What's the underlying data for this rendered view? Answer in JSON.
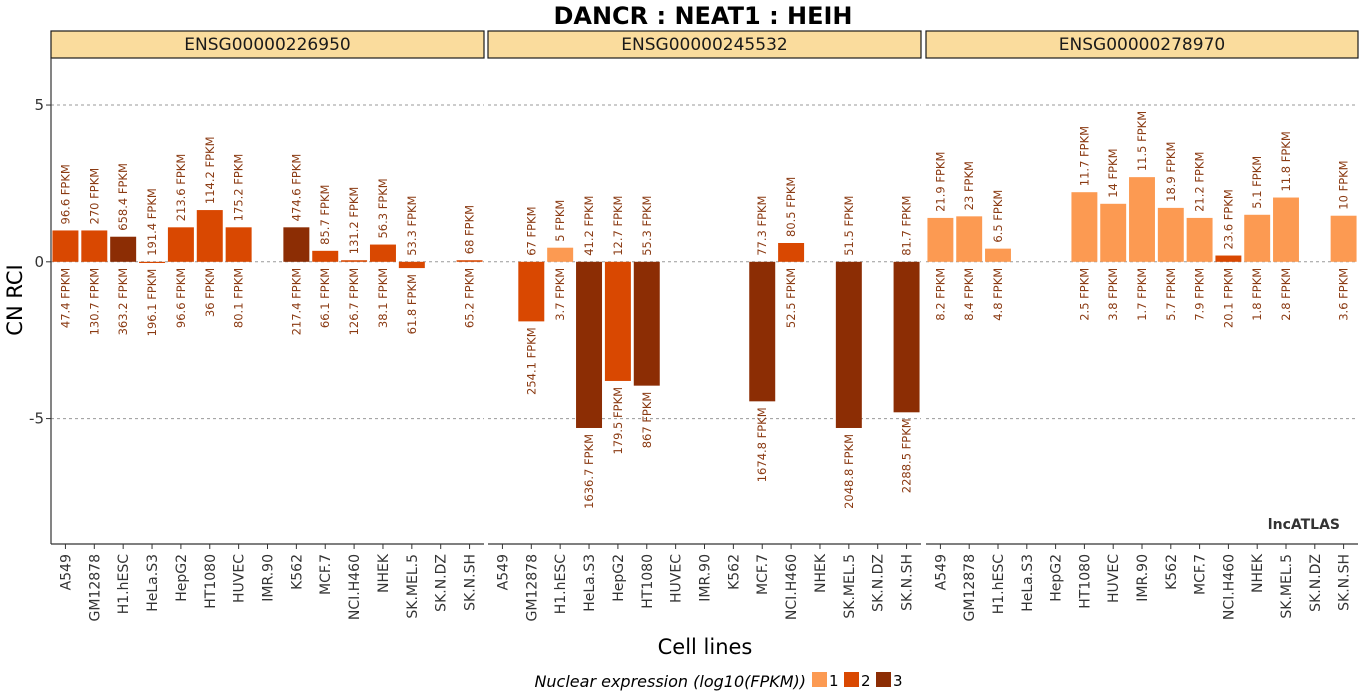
{
  "chart_data": {
    "type": "bar",
    "title": "DANCR : NEAT1 : HEIH",
    "xlabel": "Cell lines",
    "ylabel": "CN RCI",
    "ylim": [
      -9,
      6.5
    ],
    "yticks": [
      -5,
      0,
      5
    ],
    "grid": true,
    "watermark": "lncATLAS",
    "categories": [
      "A549",
      "GM12878",
      "H1.hESC",
      "HeLa.S3",
      "HepG2",
      "HT1080",
      "HUVEC",
      "IMR.90",
      "K562",
      "MCF.7",
      "NCI.H460",
      "NHEK",
      "SK.MEL.5",
      "SK.N.DZ",
      "SK.N.SH"
    ],
    "legend": {
      "title": "Nuclear expression (log10(FPKM))",
      "position": "bottom",
      "levels": [
        {
          "label": "1",
          "color": "#fc9a52"
        },
        {
          "label": "2",
          "color": "#d94801"
        },
        {
          "label": "3",
          "color": "#8c2d04"
        }
      ]
    },
    "panels": [
      {
        "name": "ENSG00000226950",
        "bars": [
          {
            "cell": "A549",
            "value": 1.0,
            "level": 2,
            "cyto_label": "96.6 FPKM",
            "nuc_label": "47.4 FPKM"
          },
          {
            "cell": "GM12878",
            "value": 1.0,
            "level": 2,
            "cyto_label": "270 FPKM",
            "nuc_label": "130.7 FPKM"
          },
          {
            "cell": "H1.hESC",
            "value": 0.8,
            "level": 3,
            "cyto_label": "658.4 FPKM",
            "nuc_label": "363.2 FPKM"
          },
          {
            "cell": "HeLa.S3",
            "value": -0.03,
            "level": 2,
            "cyto_label": "191.4 FPKM",
            "nuc_label": "196.1 FPKM"
          },
          {
            "cell": "HepG2",
            "value": 1.1,
            "level": 2,
            "cyto_label": "213.6 FPKM",
            "nuc_label": "96.6 FPKM"
          },
          {
            "cell": "HT1080",
            "value": 1.65,
            "level": 2,
            "cyto_label": "114.2 FPKM",
            "nuc_label": "36 FPKM"
          },
          {
            "cell": "HUVEC",
            "value": 1.1,
            "level": 2,
            "cyto_label": "175.2 FPKM",
            "nuc_label": "80.1 FPKM"
          },
          {
            "cell": "K562",
            "value": 1.1,
            "level": 3,
            "cyto_label": "474.6 FPKM",
            "nuc_label": "217.4 FPKM"
          },
          {
            "cell": "MCF.7",
            "value": 0.35,
            "level": 2,
            "cyto_label": "85.7 FPKM",
            "nuc_label": "66.1 FPKM"
          },
          {
            "cell": "NCI.H460",
            "value": 0.05,
            "level": 2,
            "cyto_label": "131.2 FPKM",
            "nuc_label": "126.7 FPKM"
          },
          {
            "cell": "NHEK",
            "value": 0.55,
            "level": 2,
            "cyto_label": "56.3 FPKM",
            "nuc_label": "38.1 FPKM"
          },
          {
            "cell": "SK.MEL.5",
            "value": -0.2,
            "level": 2,
            "cyto_label": "53.3 FPKM",
            "nuc_label": "61.8 FPKM"
          },
          {
            "cell": "SK.N.SH",
            "value": 0.05,
            "level": 2,
            "cyto_label": "68 FPKM",
            "nuc_label": "65.2 FPKM"
          }
        ]
      },
      {
        "name": "ENSG00000245532",
        "bars": [
          {
            "cell": "GM12878",
            "value": -1.9,
            "level": 2,
            "cyto_label": "67 FPKM",
            "nuc_label": "254.1 FPKM"
          },
          {
            "cell": "H1.hESC",
            "value": 0.45,
            "level": 1,
            "cyto_label": "5 FPKM",
            "nuc_label": "3.7 FPKM"
          },
          {
            "cell": "HeLa.S3",
            "value": -5.3,
            "level": 3,
            "cyto_label": "41.2 FPKM",
            "nuc_label": "1636.7 FPKM"
          },
          {
            "cell": "HepG2",
            "value": -3.8,
            "level": 2,
            "cyto_label": "12.7 FPKM",
            "nuc_label": "179.5 FPKM"
          },
          {
            "cell": "HT1080",
            "value": -3.95,
            "level": 3,
            "cyto_label": "55.3 FPKM",
            "nuc_label": "867 FPKM"
          },
          {
            "cell": "MCF.7",
            "value": -4.45,
            "level": 3,
            "cyto_label": "77.3 FPKM",
            "nuc_label": "1674.8 FPKM"
          },
          {
            "cell": "NCI.H460",
            "value": 0.6,
            "level": 2,
            "cyto_label": "80.5 FPKM",
            "nuc_label": "52.5 FPKM"
          },
          {
            "cell": "SK.MEL.5",
            "value": -5.3,
            "level": 3,
            "cyto_label": "51.5 FPKM",
            "nuc_label": "2048.8 FPKM"
          },
          {
            "cell": "SK.N.SH",
            "value": -4.8,
            "level": 3,
            "cyto_label": "81.7 FPKM",
            "nuc_label": "2288.5 FPKM"
          }
        ]
      },
      {
        "name": "ENSG00000278970",
        "bars": [
          {
            "cell": "A549",
            "value": 1.4,
            "level": 1,
            "cyto_label": "21.9 FPKM",
            "nuc_label": "8.2 FPKM"
          },
          {
            "cell": "GM12878",
            "value": 1.45,
            "level": 1,
            "cyto_label": "23 FPKM",
            "nuc_label": "8.4 FPKM"
          },
          {
            "cell": "H1.hESC",
            "value": 0.42,
            "level": 1,
            "cyto_label": "6.5 FPKM",
            "nuc_label": "4.8 FPKM"
          },
          {
            "cell": "HT1080",
            "value": 2.22,
            "level": 1,
            "cyto_label": "11.7 FPKM",
            "nuc_label": "2.5 FPKM"
          },
          {
            "cell": "HUVEC",
            "value": 1.85,
            "level": 1,
            "cyto_label": "14 FPKM",
            "nuc_label": "3.8 FPKM"
          },
          {
            "cell": "IMR.90",
            "value": 2.7,
            "level": 1,
            "cyto_label": "11.5 FPKM",
            "nuc_label": "1.7 FPKM"
          },
          {
            "cell": "K562",
            "value": 1.72,
            "level": 1,
            "cyto_label": "18.9 FPKM",
            "nuc_label": "5.7 FPKM"
          },
          {
            "cell": "MCF.7",
            "value": 1.4,
            "level": 1,
            "cyto_label": "21.2 FPKM",
            "nuc_label": "7.9 FPKM"
          },
          {
            "cell": "NCI.H460",
            "value": 0.2,
            "level": 2,
            "cyto_label": "23.6 FPKM",
            "nuc_label": "20.1 FPKM"
          },
          {
            "cell": "NHEK",
            "value": 1.5,
            "level": 1,
            "cyto_label": "5.1 FPKM",
            "nuc_label": "1.8 FPKM"
          },
          {
            "cell": "SK.MEL.5",
            "value": 2.05,
            "level": 1,
            "cyto_label": "11.8 FPKM",
            "nuc_label": "2.8 FPKM"
          },
          {
            "cell": "SK.N.SH",
            "value": 1.47,
            "level": 1,
            "cyto_label": "10 FPKM",
            "nuc_label": "3.6 FPKM"
          }
        ]
      }
    ]
  }
}
